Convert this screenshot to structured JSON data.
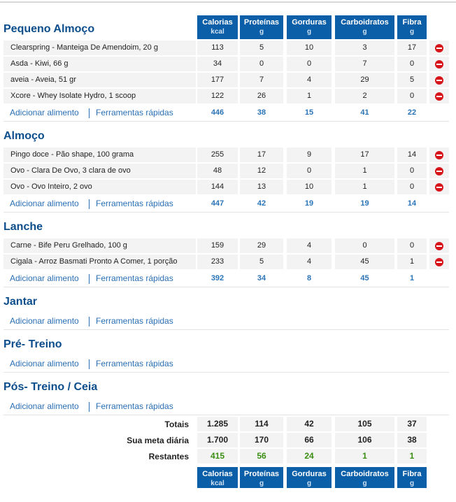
{
  "columns": [
    {
      "name": "Calorias",
      "unit": "kcal"
    },
    {
      "name": "Proteínas",
      "unit": "g"
    },
    {
      "name": "Gorduras",
      "unit": "g"
    },
    {
      "name": "Carboidratos",
      "unit": "g"
    },
    {
      "name": "Fibra",
      "unit": "g"
    }
  ],
  "add_food": "Adicionar alimento",
  "quick_tools": "Ferramentas rápidas",
  "meals": [
    {
      "title": "Pequeno Almoço",
      "foods": [
        {
          "name": "Clearspring - Manteiga De Amendoim, 20 g",
          "values": [
            113,
            5,
            10,
            3,
            17
          ]
        },
        {
          "name": "Asda - Kiwi, 66 g",
          "values": [
            34,
            0,
            0,
            7,
            0
          ]
        },
        {
          "name": "aveia - Aveia, 51 gr",
          "values": [
            177,
            7,
            4,
            29,
            5
          ]
        },
        {
          "name": "Xcore - Whey Isolate Hydro, 1 scoop",
          "values": [
            122,
            26,
            1,
            2,
            0
          ]
        }
      ],
      "totals": [
        446,
        38,
        15,
        41,
        22
      ]
    },
    {
      "title": "Almoço",
      "foods": [
        {
          "name": "Pingo doce - Pão shape, 100 grama",
          "values": [
            255,
            17,
            9,
            17,
            14
          ]
        },
        {
          "name": "Ovo - Clara De Ovo, 3 clara de ovo",
          "values": [
            48,
            12,
            0,
            1,
            0
          ]
        },
        {
          "name": "Ovo - Ovo Inteiro, 2 ovo",
          "values": [
            144,
            13,
            10,
            1,
            0
          ]
        }
      ],
      "totals": [
        447,
        42,
        19,
        19,
        14
      ]
    },
    {
      "title": "Lanche",
      "foods": [
        {
          "name": "Carne - Bife Peru Grelhado, 100 g",
          "values": [
            159,
            29,
            4,
            0,
            0
          ]
        },
        {
          "name": "Cigala - Arroz Basmati Pronto A Comer, 1 porção",
          "values": [
            233,
            5,
            4,
            45,
            1
          ]
        }
      ],
      "totals": [
        392,
        34,
        8,
        45,
        1
      ]
    },
    {
      "title": "Jantar",
      "foods": []
    },
    {
      "title": "Pré- Treino",
      "foods": []
    },
    {
      "title": "Pós- Treino / Ceia",
      "foods": []
    }
  ],
  "summary": [
    {
      "label": "Totais",
      "values": [
        "1.285",
        114,
        42,
        105,
        37
      ]
    },
    {
      "label": "Sua meta diária",
      "values": [
        "1.700",
        170,
        66,
        106,
        38
      ]
    },
    {
      "label": "Restantes",
      "values": [
        415,
        56,
        24,
        1,
        1
      ]
    }
  ]
}
